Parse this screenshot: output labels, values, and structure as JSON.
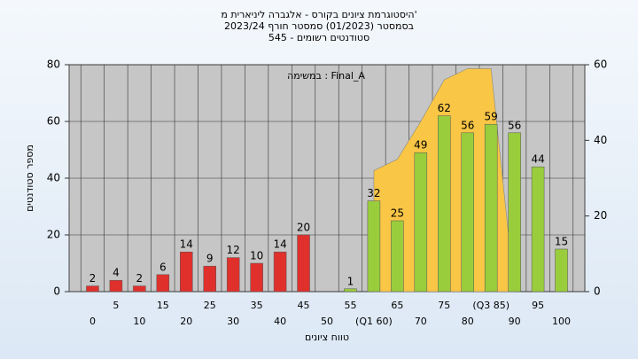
{
  "chart_data": {
    "type": "bar",
    "title": [
      "היסטוגרמת ציונים בקורס - אלגברה ליניארית מ'",
      "בסמסטר  (01/2023)  סמסטר חורף 2023/24",
      "סטודנטים רשומים - 545"
    ],
    "annotation": "במשימה : Final_A",
    "x_label": "טווח ציונים",
    "y_label": "מספר סטודנטים",
    "categories": [
      "0",
      "5",
      "10",
      "15",
      "20",
      "25",
      "30",
      "35",
      "40",
      "45",
      "50",
      "55",
      "(Q1 60)",
      "65",
      "70",
      "75",
      "80",
      "(Q3 85)",
      "90",
      "95",
      "100"
    ],
    "values": [
      2,
      4,
      2,
      6,
      14,
      9,
      12,
      10,
      14,
      20,
      null,
      1,
      32,
      25,
      49,
      62,
      56,
      59,
      56,
      44,
      15
    ],
    "colors": [
      "#e0302c",
      "#e0302c",
      "#e0302c",
      "#e0302c",
      "#e0302c",
      "#e0302c",
      "#e0302c",
      "#e0302c",
      "#e0302c",
      "#e0302c",
      "#e0302c",
      "#9acd3c",
      "#9acd3c",
      "#9acd3c",
      "#9acd3c",
      "#9acd3c",
      "#9acd3c",
      "#9acd3c",
      "#9acd3c",
      "#9acd3c",
      "#9acd3c"
    ],
    "area": {
      "axis": "y2",
      "color": "#f9c646",
      "values": [
        null,
        null,
        null,
        null,
        null,
        null,
        null,
        null,
        null,
        null,
        null,
        null,
        32,
        35,
        45,
        56,
        59,
        59,
        0,
        null,
        null
      ]
    },
    "ylim": [
      0,
      80
    ],
    "yticks": [
      0,
      20,
      40,
      60,
      80
    ],
    "y2lim": [
      0,
      60
    ],
    "y2ticks": [
      0,
      20,
      40,
      60
    ],
    "grid": true
  }
}
